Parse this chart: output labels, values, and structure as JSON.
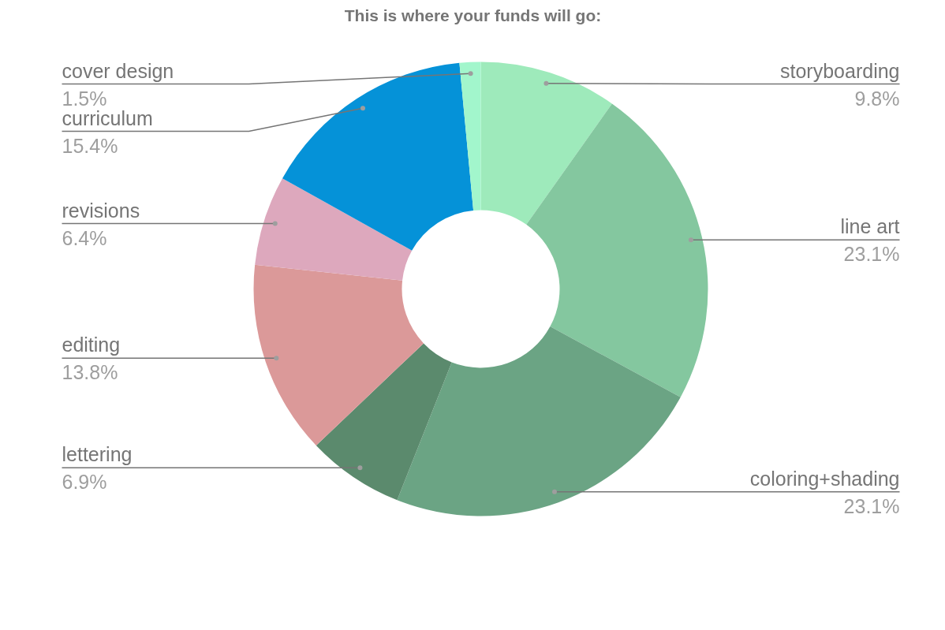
{
  "chart_data": {
    "type": "donut",
    "title": "This is where your funds will go:",
    "categories": [
      "storyboarding",
      "line art",
      "coloring+shading",
      "lettering",
      "editing",
      "revisions",
      "curriculum",
      "cover design"
    ],
    "values": [
      9.8,
      23.1,
      23.1,
      6.9,
      13.8,
      6.4,
      15.4,
      1.5
    ],
    "colors": [
      "#9eeabb",
      "#84c79f",
      "#6ba484",
      "#5b8a6d",
      "#db9999",
      "#dda8bd",
      "#0592d8",
      "#a2f6cc"
    ],
    "value_labels": [
      "9.8%",
      "23.1%",
      "23.1%",
      "6.9%",
      "13.8%",
      "6.4%",
      "15.4%",
      "1.5%"
    ]
  }
}
